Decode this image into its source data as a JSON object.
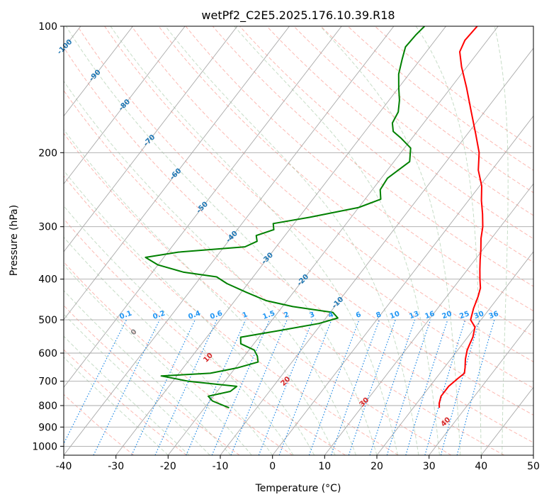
{
  "chart_data": {
    "type": "line",
    "subtype": "skew-T log-P diagram",
    "title": "wetPf2_C2E5.2025.176.10.39.R18",
    "xlabel": "Temperature (°C)",
    "ylabel": "Pressure (hPa)",
    "xlim": [
      -40,
      50
    ],
    "ylim": [
      1050,
      100
    ],
    "y_scale": "log",
    "x_ticks": [
      -40,
      -30,
      -20,
      -10,
      0,
      10,
      20,
      30,
      40,
      50
    ],
    "y_ticks": [
      100,
      200,
      300,
      400,
      500,
      600,
      700,
      800,
      900,
      1000
    ],
    "grid": true,
    "series": [
      {
        "color": "#ff0000",
        "points": [
          {
            "p": 810,
            "t": 25.0
          },
          {
            "p": 790,
            "t": 24.3
          },
          {
            "p": 760,
            "t": 23.6
          },
          {
            "p": 720,
            "t": 23.6
          },
          {
            "p": 690,
            "t": 24.2
          },
          {
            "p": 670,
            "t": 24.7
          },
          {
            "p": 650,
            "t": 24.0
          },
          {
            "p": 620,
            "t": 22.8
          },
          {
            "p": 590,
            "t": 21.8
          },
          {
            "p": 570,
            "t": 21.4
          },
          {
            "p": 550,
            "t": 21.0
          },
          {
            "p": 520,
            "t": 19.9
          },
          {
            "p": 500,
            "t": 18.0
          },
          {
            "p": 470,
            "t": 16.9
          },
          {
            "p": 440,
            "t": 16.0
          },
          {
            "p": 420,
            "t": 15.2
          },
          {
            "p": 400,
            "t": 13.8
          },
          {
            "p": 380,
            "t": 12.4
          },
          {
            "p": 360,
            "t": 11.0
          },
          {
            "p": 340,
            "t": 9.6
          },
          {
            "p": 320,
            "t": 8.0
          },
          {
            "p": 300,
            "t": 6.6
          },
          {
            "p": 280,
            "t": 4.7
          },
          {
            "p": 260,
            "t": 2.5
          },
          {
            "p": 240,
            "t": 0.4
          },
          {
            "p": 220,
            "t": -2.6
          },
          {
            "p": 200,
            "t": -5.0
          },
          {
            "p": 180,
            "t": -8.5
          },
          {
            "p": 160,
            "t": -12.5
          },
          {
            "p": 140,
            "t": -17.0
          },
          {
            "p": 125,
            "t": -21.0
          },
          {
            "p": 115,
            "t": -23.6
          },
          {
            "p": 108,
            "t": -24.3
          },
          {
            "p": 100,
            "t": -24.0
          }
        ]
      },
      {
        "color": "#008000",
        "points": [
          {
            "p": 810,
            "t": -15.3
          },
          {
            "p": 780,
            "t": -19.5
          },
          {
            "p": 760,
            "t": -21.0
          },
          {
            "p": 740,
            "t": -17.5
          },
          {
            "p": 720,
            "t": -17.0
          },
          {
            "p": 700,
            "t": -27.0
          },
          {
            "p": 680,
            "t": -33.0
          },
          {
            "p": 670,
            "t": -24.0
          },
          {
            "p": 650,
            "t": -19.5
          },
          {
            "p": 630,
            "t": -16.5
          },
          {
            "p": 610,
            "t": -17.5
          },
          {
            "p": 590,
            "t": -19.0
          },
          {
            "p": 570,
            "t": -22.5
          },
          {
            "p": 550,
            "t": -23.5
          },
          {
            "p": 530,
            "t": -17.0
          },
          {
            "p": 510,
            "t": -10.5
          },
          {
            "p": 495,
            "t": -7.7
          },
          {
            "p": 480,
            "t": -9.5
          },
          {
            "p": 465,
            "t": -18.0
          },
          {
            "p": 450,
            "t": -24.0
          },
          {
            "p": 430,
            "t": -29.0
          },
          {
            "p": 410,
            "t": -34.0
          },
          {
            "p": 395,
            "t": -37.0
          },
          {
            "p": 385,
            "t": -44.0
          },
          {
            "p": 370,
            "t": -50.0
          },
          {
            "p": 355,
            "t": -53.5
          },
          {
            "p": 345,
            "t": -48.0
          },
          {
            "p": 335,
            "t": -36.0
          },
          {
            "p": 325,
            "t": -34.5
          },
          {
            "p": 315,
            "t": -35.5
          },
          {
            "p": 305,
            "t": -33.0
          },
          {
            "p": 295,
            "t": -34.0
          },
          {
            "p": 285,
            "t": -28.0
          },
          {
            "p": 270,
            "t": -20.0
          },
          {
            "p": 258,
            "t": -17.0
          },
          {
            "p": 245,
            "t": -18.5
          },
          {
            "p": 230,
            "t": -18.8
          },
          {
            "p": 210,
            "t": -17.0
          },
          {
            "p": 195,
            "t": -18.8
          },
          {
            "p": 185,
            "t": -22.0
          },
          {
            "p": 178,
            "t": -24.6
          },
          {
            "p": 170,
            "t": -26.0
          },
          {
            "p": 160,
            "t": -26.5
          },
          {
            "p": 150,
            "t": -28.0
          },
          {
            "p": 140,
            "t": -30.0
          },
          {
            "p": 130,
            "t": -32.0
          },
          {
            "p": 120,
            "t": -33.5
          },
          {
            "p": 112,
            "t": -34.7
          },
          {
            "p": 105,
            "t": -34.5
          },
          {
            "p": 100,
            "t": -34.1
          }
        ]
      }
    ],
    "isotherm_labels": [
      -100,
      -90,
      -80,
      -70,
      -60,
      -50,
      -40,
      -30,
      -20,
      -10
    ],
    "mixing_ratio_labels": [
      "0.1",
      "0.2",
      "0.4",
      "0.6",
      "1",
      "1.5",
      "2",
      "3",
      "4",
      "6",
      "8",
      "10",
      "13",
      "16",
      "20",
      "25",
      "30",
      "36"
    ],
    "dry_adiabat_labels": [
      "0",
      "10",
      "20",
      "30",
      "40"
    ],
    "colors": {
      "temperature": "#ff0000",
      "dewpoint": "#008000",
      "isotherm": "#a9a9a9",
      "dry_adiabat": "#fa8072",
      "moist_adiabat": "#8fbc8f",
      "mixing_ratio": "#1e88e5",
      "isotherm_label": "#1f77b4",
      "mixing_label": "#2196f3",
      "dry_label": "#d62728"
    }
  }
}
